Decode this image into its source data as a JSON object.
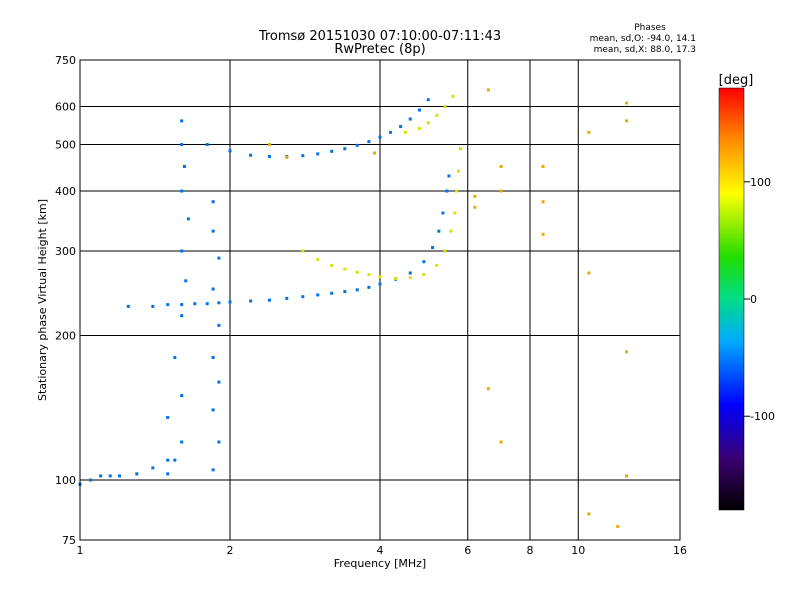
{
  "chart_data": {
    "type": "scatter",
    "title": "Tromsø 20151030 07:10:00-07:11:43",
    "subtitle": "RwPretec (8p)",
    "xlabel": "Frequency [MHz]",
    "ylabel": "Stationary phase Virtual Height [km]",
    "x_scale": "log",
    "y_scale": "log",
    "xlim": [
      1,
      16
    ],
    "ylim": [
      75,
      750
    ],
    "x_ticks": [
      1,
      2,
      4,
      6,
      8,
      10,
      16
    ],
    "x_tick_labels": [
      "1",
      "2",
      "4",
      "6",
      "8",
      "10",
      "16"
    ],
    "y_ticks": [
      75,
      100,
      200,
      300,
      400,
      500,
      600,
      750
    ],
    "y_tick_labels": [
      "75",
      "100",
      "200",
      "300",
      "400",
      "500",
      "600",
      "750"
    ],
    "grid": true,
    "legend": {
      "heading": "Phases",
      "lines": [
        "mean, sd,O: -94.0, 14.1",
        "mean, sd,X:  88.0, 17.3"
      ],
      "placement": "top-right"
    },
    "colorbar": {
      "label": "[deg]",
      "range": [
        -180,
        180
      ],
      "ticks": [
        -100,
        0,
        100
      ],
      "tick_labels": [
        "-100",
        "0",
        "100"
      ],
      "colormap": "rainbow"
    },
    "series": [
      {
        "trace": "F-region O-mode low branch",
        "phase_deg": -100,
        "points": [
          [
            1.25,
            230
          ],
          [
            1.4,
            230
          ],
          [
            1.5,
            232
          ],
          [
            1.6,
            232
          ],
          [
            1.7,
            233
          ],
          [
            1.8,
            233
          ],
          [
            1.9,
            234
          ],
          [
            2.0,
            235
          ],
          [
            2.2,
            236
          ],
          [
            2.4,
            237
          ],
          [
            2.6,
            239
          ],
          [
            2.8,
            241
          ],
          [
            3.0,
            243
          ],
          [
            3.2,
            245
          ],
          [
            3.4,
            247
          ],
          [
            3.6,
            249
          ],
          [
            3.8,
            252
          ],
          [
            4.0,
            256
          ],
          [
            4.3,
            262
          ],
          [
            4.6,
            270
          ],
          [
            4.9,
            285
          ],
          [
            5.1,
            305
          ],
          [
            5.25,
            330
          ],
          [
            5.35,
            360
          ],
          [
            5.45,
            400
          ],
          [
            5.5,
            430
          ]
        ]
      },
      {
        "trace": "F-region X-mode low branch",
        "phase_deg": 95,
        "points": [
          [
            2.8,
            300
          ],
          [
            3.0,
            288
          ],
          [
            3.2,
            280
          ],
          [
            3.4,
            275
          ],
          [
            3.6,
            271
          ],
          [
            3.8,
            268
          ],
          [
            4.0,
            265
          ],
          [
            4.3,
            263
          ],
          [
            4.6,
            264
          ],
          [
            4.9,
            268
          ],
          [
            5.2,
            280
          ],
          [
            5.4,
            300
          ],
          [
            5.55,
            330
          ],
          [
            5.65,
            360
          ],
          [
            5.7,
            400
          ],
          [
            5.75,
            440
          ],
          [
            5.8,
            490
          ]
        ]
      },
      {
        "trace": "F-region O-mode upper (multiple) trace",
        "phase_deg": -100,
        "points": [
          [
            1.8,
            500
          ],
          [
            2.0,
            485
          ],
          [
            2.2,
            475
          ],
          [
            2.4,
            472
          ],
          [
            2.6,
            472
          ],
          [
            2.8,
            474
          ],
          [
            3.0,
            478
          ],
          [
            3.2,
            484
          ],
          [
            3.4,
            490
          ],
          [
            3.6,
            498
          ],
          [
            3.8,
            507
          ],
          [
            4.0,
            518
          ],
          [
            4.2,
            530
          ],
          [
            4.4,
            545
          ],
          [
            4.6,
            565
          ],
          [
            4.8,
            590
          ],
          [
            5.0,
            620
          ]
        ]
      },
      {
        "trace": "F-region X-mode upper (multiple) trace",
        "phase_deg": 95,
        "points": [
          [
            4.5,
            530
          ],
          [
            4.8,
            540
          ],
          [
            5.0,
            555
          ],
          [
            5.2,
            575
          ],
          [
            5.4,
            600
          ],
          [
            5.6,
            630
          ]
        ]
      },
      {
        "trace": "Cusp / E-F spread near 1.6 MHz",
        "phase_deg": -100,
        "points": [
          [
            1.6,
            560
          ],
          [
            1.6,
            500
          ],
          [
            1.62,
            450
          ],
          [
            1.6,
            400
          ],
          [
            1.65,
            350
          ],
          [
            1.6,
            300
          ],
          [
            1.63,
            260
          ],
          [
            1.6,
            220
          ],
          [
            1.55,
            180
          ],
          [
            1.6,
            150
          ],
          [
            1.5,
            135
          ],
          [
            1.6,
            120
          ],
          [
            1.55,
            110
          ],
          [
            1.5,
            103
          ]
        ]
      },
      {
        "trace": "Spread near 1.85 MHz",
        "phase_deg": -100,
        "points": [
          [
            1.85,
            380
          ],
          [
            1.85,
            330
          ],
          [
            1.9,
            290
          ],
          [
            1.85,
            250
          ],
          [
            1.9,
            210
          ],
          [
            1.85,
            180
          ],
          [
            1.9,
            160
          ],
          [
            1.85,
            140
          ],
          [
            1.9,
            120
          ],
          [
            1.85,
            105
          ]
        ]
      },
      {
        "trace": "E-region low trace",
        "phase_deg": -100,
        "points": [
          [
            1.0,
            98
          ],
          [
            1.05,
            100
          ],
          [
            1.1,
            102
          ],
          [
            1.15,
            102
          ],
          [
            1.2,
            102
          ],
          [
            1.3,
            103
          ],
          [
            1.4,
            106
          ],
          [
            1.5,
            110
          ]
        ]
      },
      {
        "trace": "Scattered points",
        "phase_deg": 120,
        "points": [
          [
            2.4,
            500
          ],
          [
            2.6,
            470
          ],
          [
            3.9,
            480
          ],
          [
            6.2,
            390
          ],
          [
            6.2,
            370
          ],
          [
            6.6,
            650
          ],
          [
            7.0,
            400
          ],
          [
            7.0,
            450
          ],
          [
            8.5,
            450
          ],
          [
            8.5,
            380
          ],
          [
            10.5,
            530
          ],
          [
            10.5,
            270
          ],
          [
            12.5,
            610
          ],
          [
            12.5,
            560
          ],
          [
            12.5,
            185
          ],
          [
            12.5,
            102
          ],
          [
            8.5,
            325
          ],
          [
            6.6,
            155
          ],
          [
            7.0,
            120
          ],
          [
            10.5,
            85
          ],
          [
            12.0,
            80
          ]
        ]
      }
    ]
  }
}
